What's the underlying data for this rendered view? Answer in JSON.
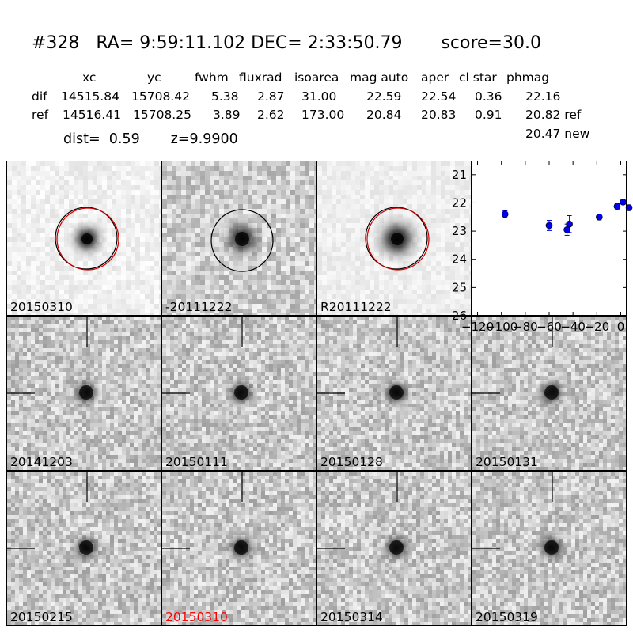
{
  "header": {
    "title": "#328   RA= 9:59:11.102 DEC= 2:33:50.79       score=30.0",
    "columns": [
      "xc",
      "yc",
      "fwhm",
      "fluxrad",
      "isoarea",
      "mag auto",
      "aper",
      "cl star",
      "phmag"
    ],
    "rows": [
      {
        "name": "dif",
        "values": [
          "14515.84",
          "15708.42",
          "5.38",
          "2.87",
          "31.00",
          "22.59",
          "22.54",
          "0.36",
          "22.16"
        ]
      },
      {
        "name": "ref",
        "values": [
          "14516.41",
          "15708.25",
          "3.89",
          "2.62",
          "173.00",
          "20.84",
          "20.83",
          "0.91",
          "20.82 ref"
        ]
      }
    ],
    "new_mag": "20.47 new",
    "dist_line": "dist=  0.59       z=9.9900"
  },
  "colors": {
    "circle_black": "#000000",
    "circle_red": "#d00000",
    "highlight_label": "#ff0000",
    "points": "#0000ee"
  },
  "stamps": [
    {
      "label": "20150310",
      "type": "dif",
      "circles": "both",
      "highlight": false
    },
    {
      "label": "-20111222",
      "type": "sub",
      "circles": "black",
      "highlight": false
    },
    {
      "label": "R20111222",
      "type": "ref",
      "circles": "both",
      "highlight": false
    },
    {
      "label": "20141203",
      "type": "epoch",
      "highlight": false
    },
    {
      "label": "20150111",
      "type": "epoch",
      "highlight": false
    },
    {
      "label": "20150128",
      "type": "epoch",
      "highlight": false
    },
    {
      "label": "20150131",
      "type": "epoch",
      "highlight": false
    },
    {
      "label": "20150215",
      "type": "epoch",
      "highlight": false
    },
    {
      "label": "20150310",
      "type": "epoch",
      "highlight": true
    },
    {
      "label": "20150314",
      "type": "epoch",
      "highlight": false
    },
    {
      "label": "20150319",
      "type": "epoch",
      "highlight": false
    }
  ],
  "chart_data": {
    "type": "scatter",
    "xlim": [
      -125,
      5
    ],
    "ylim": [
      26,
      20.5
    ],
    "y_inverted": true,
    "xticks": [
      -120,
      -100,
      -80,
      -60,
      -40,
      -20,
      0
    ],
    "xtick_labels": [
      "−120",
      "−100",
      "−80",
      "−60",
      "−40",
      "−20",
      "0"
    ],
    "yticks": [
      21,
      22,
      23,
      24,
      25,
      26
    ],
    "grid": false,
    "series": [
      {
        "x": [
          -97,
          -60,
          -45,
          -43,
          -18,
          -3,
          2,
          7
        ],
        "y": [
          22.4,
          22.8,
          22.95,
          22.75,
          22.5,
          22.12,
          21.97,
          22.17
        ],
        "err": [
          0.12,
          0.18,
          0.2,
          0.3,
          0.1,
          0.1,
          0.08,
          0.1
        ]
      }
    ]
  }
}
